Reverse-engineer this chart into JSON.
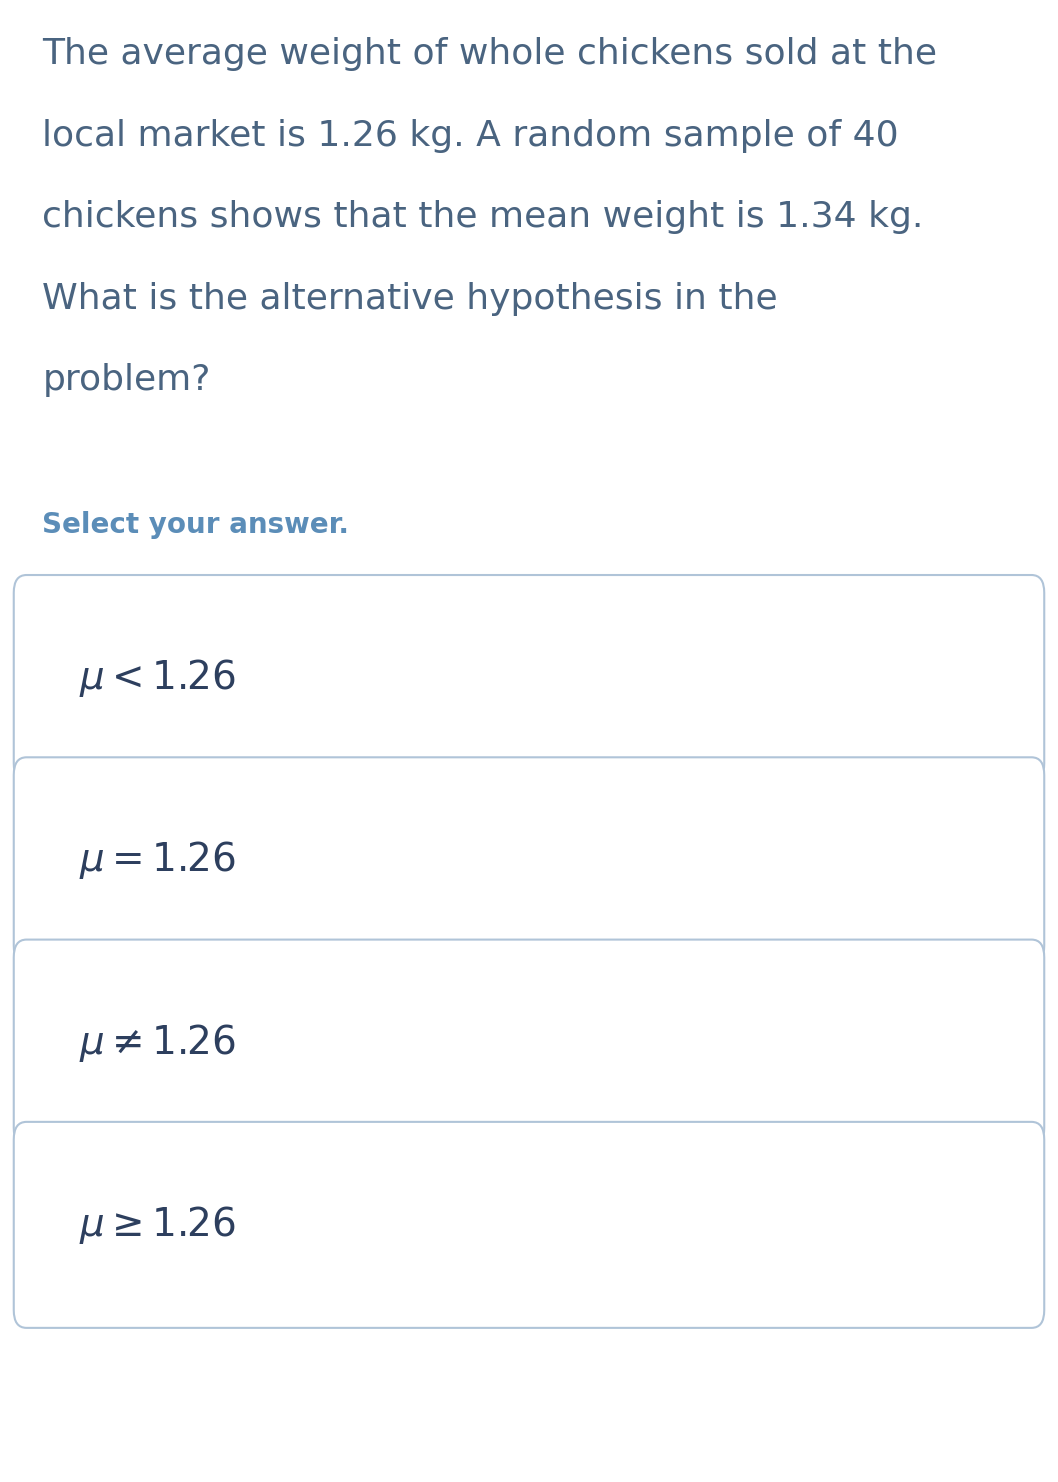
{
  "background_color": "#ffffff",
  "question_color": "#4a6480",
  "select_label": "Select your answer.",
  "select_color": "#5b8db8",
  "options": [
    "$\\mu < 1.26$",
    "$\\mu = 1.26$",
    "$\\mu \\neq 1.26$",
    "$\\mu \\geq 1.26$"
  ],
  "option_text_color": "#2d3f5e",
  "box_edge_color": "#b0c4d8",
  "box_face_color": "#ffffff",
  "question_fontsize": 26,
  "select_fontsize": 20,
  "option_fontsize": 28,
  "fig_width": 10.58,
  "fig_height": 14.82,
  "question_lines": [
    "The average weight of whole chickens sold at the",
    "local market is 1.26 kg. A random sample of 40",
    "chickens shows that the mean weight is 1.34 kg.",
    "What is the alternative hypothesis in the",
    "problem?"
  ]
}
